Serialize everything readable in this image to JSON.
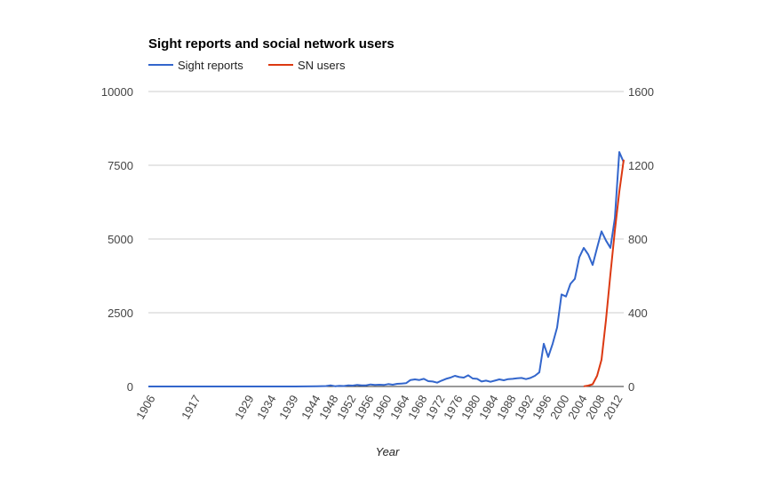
{
  "chart_data": {
    "type": "line",
    "title": "Sight reports and social network users",
    "xlabel": "Year",
    "ylabel": "",
    "ylabel_right": "",
    "legend_position": "top-left",
    "grid": true,
    "x_range": [
      1906,
      2013
    ],
    "ylim": [
      0,
      10000
    ],
    "ylim_right": [
      0,
      1600
    ],
    "y_ticks": [
      0,
      2500,
      5000,
      7500,
      10000
    ],
    "y_ticks_right": [
      0,
      400,
      800,
      1200,
      1600
    ],
    "x_ticks": [
      1906,
      1917,
      1929,
      1934,
      1939,
      1944,
      1948,
      1952,
      1956,
      1960,
      1964,
      1968,
      1972,
      1976,
      1980,
      1984,
      1988,
      1992,
      1996,
      2000,
      2004,
      2008,
      2012
    ],
    "series": [
      {
        "name": "Sight reports",
        "color": "#3366cc",
        "axis": "left",
        "points": [
          [
            1906,
            0
          ],
          [
            1910,
            0
          ],
          [
            1917,
            0
          ],
          [
            1929,
            0
          ],
          [
            1934,
            0
          ],
          [
            1939,
            0
          ],
          [
            1944,
            10
          ],
          [
            1946,
            15
          ],
          [
            1947,
            40
          ],
          [
            1948,
            10
          ],
          [
            1949,
            20
          ],
          [
            1950,
            15
          ],
          [
            1951,
            40
          ],
          [
            1952,
            30
          ],
          [
            1953,
            55
          ],
          [
            1954,
            35
          ],
          [
            1955,
            40
          ],
          [
            1956,
            70
          ],
          [
            1957,
            50
          ],
          [
            1958,
            60
          ],
          [
            1959,
            50
          ],
          [
            1960,
            80
          ],
          [
            1961,
            60
          ],
          [
            1962,
            90
          ],
          [
            1963,
            100
          ],
          [
            1964,
            110
          ],
          [
            1965,
            220
          ],
          [
            1966,
            240
          ],
          [
            1967,
            220
          ],
          [
            1968,
            260
          ],
          [
            1969,
            180
          ],
          [
            1970,
            170
          ],
          [
            1971,
            130
          ],
          [
            1972,
            200
          ],
          [
            1973,
            260
          ],
          [
            1974,
            300
          ],
          [
            1975,
            360
          ],
          [
            1976,
            320
          ],
          [
            1977,
            300
          ],
          [
            1978,
            380
          ],
          [
            1979,
            270
          ],
          [
            1980,
            260
          ],
          [
            1981,
            170
          ],
          [
            1982,
            200
          ],
          [
            1983,
            160
          ],
          [
            1984,
            200
          ],
          [
            1985,
            240
          ],
          [
            1986,
            210
          ],
          [
            1987,
            250
          ],
          [
            1988,
            260
          ],
          [
            1989,
            280
          ],
          [
            1990,
            290
          ],
          [
            1991,
            250
          ],
          [
            1992,
            290
          ],
          [
            1993,
            360
          ],
          [
            1994,
            480
          ],
          [
            1995,
            1450
          ],
          [
            1996,
            1000
          ],
          [
            1997,
            1450
          ],
          [
            1998,
            2000
          ],
          [
            1999,
            3120
          ],
          [
            2000,
            3050
          ],
          [
            2001,
            3480
          ],
          [
            2002,
            3650
          ],
          [
            2003,
            4380
          ],
          [
            2004,
            4700
          ],
          [
            2005,
            4480
          ],
          [
            2006,
            4120
          ],
          [
            2007,
            4700
          ],
          [
            2008,
            5260
          ],
          [
            2009,
            4950
          ],
          [
            2010,
            4700
          ],
          [
            2011,
            5700
          ],
          [
            2012,
            7950
          ],
          [
            2013,
            7600
          ]
        ]
      },
      {
        "name": "SN users",
        "color": "#dc3912",
        "axis": "right",
        "points": [
          [
            2004,
            1
          ],
          [
            2005,
            5
          ],
          [
            2006,
            12
          ],
          [
            2007,
            58
          ],
          [
            2008,
            145
          ],
          [
            2009,
            360
          ],
          [
            2010,
            608
          ],
          [
            2011,
            845
          ],
          [
            2012,
            1056
          ],
          [
            2013,
            1230
          ]
        ]
      }
    ]
  }
}
